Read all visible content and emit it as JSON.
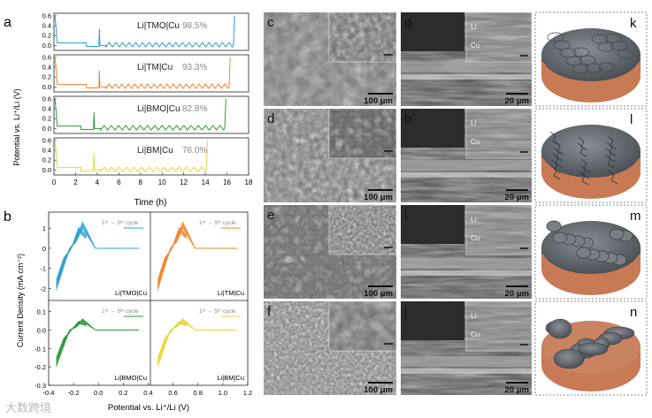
{
  "panel_labels": {
    "a": "a",
    "b": "b",
    "c": "c",
    "d": "d",
    "e": "e",
    "f": "f",
    "g": "g",
    "h": "h",
    "i": "i",
    "j": "j",
    "k": "k",
    "l": "l",
    "m": "m",
    "n": "n"
  },
  "colors": {
    "tmo": "#2a9fd6",
    "tm": "#f0862a",
    "bmo": "#2f9a3a",
    "bm": "#e8d63a",
    "copper": "#c87a55"
  },
  "panel_a": {
    "ylabel": "Potential vs. Li⁺/Li (V)",
    "xlabel": "Time (h)",
    "ytick_labels": [
      "0.6",
      "0.4",
      "0.2",
      "0.0"
    ],
    "xtick_labels": [
      "0",
      "2",
      "4",
      "6",
      "8",
      "10",
      "12",
      "14",
      "16",
      "18"
    ],
    "traces": [
      {
        "name": "Li|TMO|Cu",
        "efficiency": "98.5%",
        "color_key": "tmo",
        "nucleation_h": 4.2,
        "end_h": 16.6,
        "cycles": 19
      },
      {
        "name": "Li|TM|Cu",
        "efficiency": "93.3%",
        "color_key": "tm",
        "nucleation_h": 4.2,
        "end_h": 16.2,
        "cycles": 19
      },
      {
        "name": "Li|BMO|Cu",
        "efficiency": "82.8%",
        "color_key": "bmo",
        "nucleation_h": 3.7,
        "end_h": 15.8,
        "cycles": 17
      },
      {
        "name": "Li|BM|Cu",
        "efficiency": "76.0%",
        "color_key": "bm",
        "nucleation_h": 3.7,
        "end_h": 14.1,
        "cycles": 14
      }
    ]
  },
  "panel_b": {
    "ylabel": "Current Density (mA cm⁻²)",
    "xlabel": "Potential vs. Li⁺/Li (V)",
    "legend": "1ˢᵗ → 5ᵗʰ cycle",
    "top_ytick_labels": [
      "1",
      "0",
      "-1",
      "-2"
    ],
    "bottom_ytick_labels": [
      "0.1",
      "0.0",
      "-0.1",
      "-0.2",
      "-0.3"
    ],
    "xtick_labels": [
      "-0.4",
      "-0.2",
      "0.0",
      "0.2",
      "0.4",
      "0.6",
      "0.8",
      "1.0",
      "1.2"
    ],
    "subplots": [
      {
        "name": "Li|TMO|Cu",
        "color_key": "tmo"
      },
      {
        "name": "Li|TM|Cu",
        "color_key": "tm"
      },
      {
        "name": "Li|BMO|Cu",
        "color_key": "bmo"
      },
      {
        "name": "Li|BM|Cu",
        "color_key": "bm"
      }
    ]
  },
  "sem_top": {
    "scale_bar": "100 μm"
  },
  "sem_cross": {
    "scale_bar": "20 μm",
    "inset_li": "Li",
    "inset_cu": "Cu"
  },
  "watermark": "大数跨境"
}
